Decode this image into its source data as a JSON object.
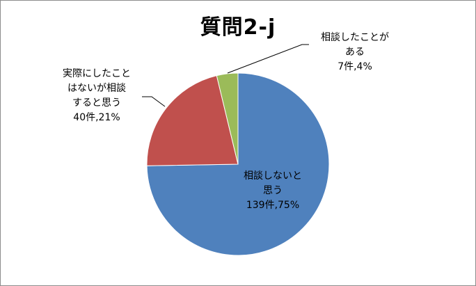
{
  "chart_data": {
    "type": "pie",
    "title": "質問2-j",
    "slices": [
      {
        "label": [
          "相談しないと",
          "思う"
        ],
        "count_label": "139件,75%",
        "value": 139,
        "percent": 75,
        "color": "#4f81bd"
      },
      {
        "label": [
          "実際にしたこと",
          "はないが相談",
          "すると思う"
        ],
        "count_label": "40件,21%",
        "value": 40,
        "percent": 21,
        "color": "#c0504d"
      },
      {
        "label": [
          "相談したことが",
          "ある"
        ],
        "count_label": "7件,4%",
        "value": 7,
        "percent": 4,
        "color": "#9bbb59"
      }
    ],
    "start": "12 o'clock",
    "direction": "clockwise",
    "legend": "none"
  }
}
